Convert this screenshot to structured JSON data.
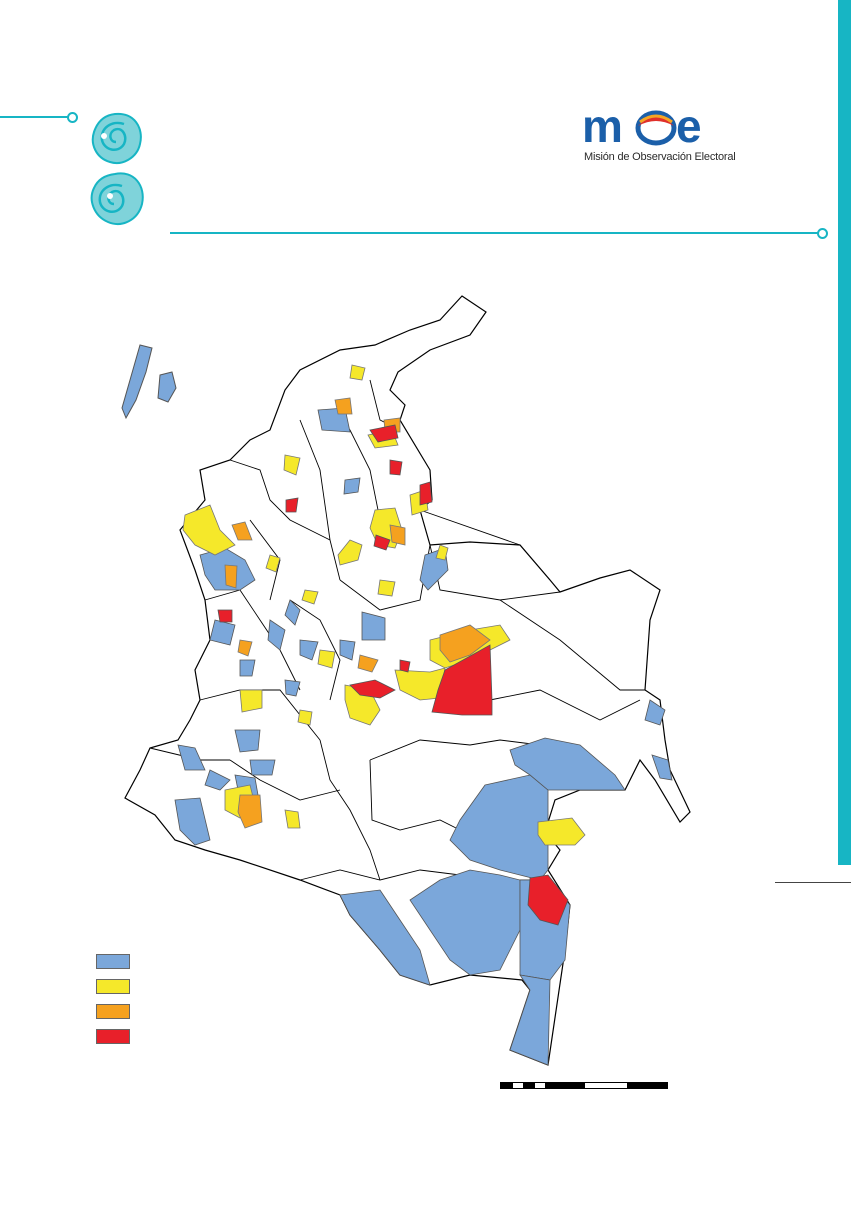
{
  "brand": {
    "logo_wordmark": "moe",
    "logo_subtitle": "Misión de Observación Electoral",
    "accent_color": "#17b5c4",
    "logo_blue": "#1b5fa9",
    "logo_red": "#e0302a",
    "logo_orange": "#f5a623"
  },
  "map": {
    "country": "Colombia",
    "base_fill": "#ffffff",
    "border_color": "#000000",
    "legend": [
      {
        "label": "",
        "color": "#7ba7da"
      },
      {
        "label": "",
        "color": "#f5e82a"
      },
      {
        "label": "",
        "color": "#f5a11f"
      },
      {
        "label": "",
        "color": "#e8202a"
      }
    ]
  },
  "scalebar": {
    "segments": [
      "black",
      "white",
      "black",
      "white",
      "black",
      "white",
      "black"
    ]
  }
}
